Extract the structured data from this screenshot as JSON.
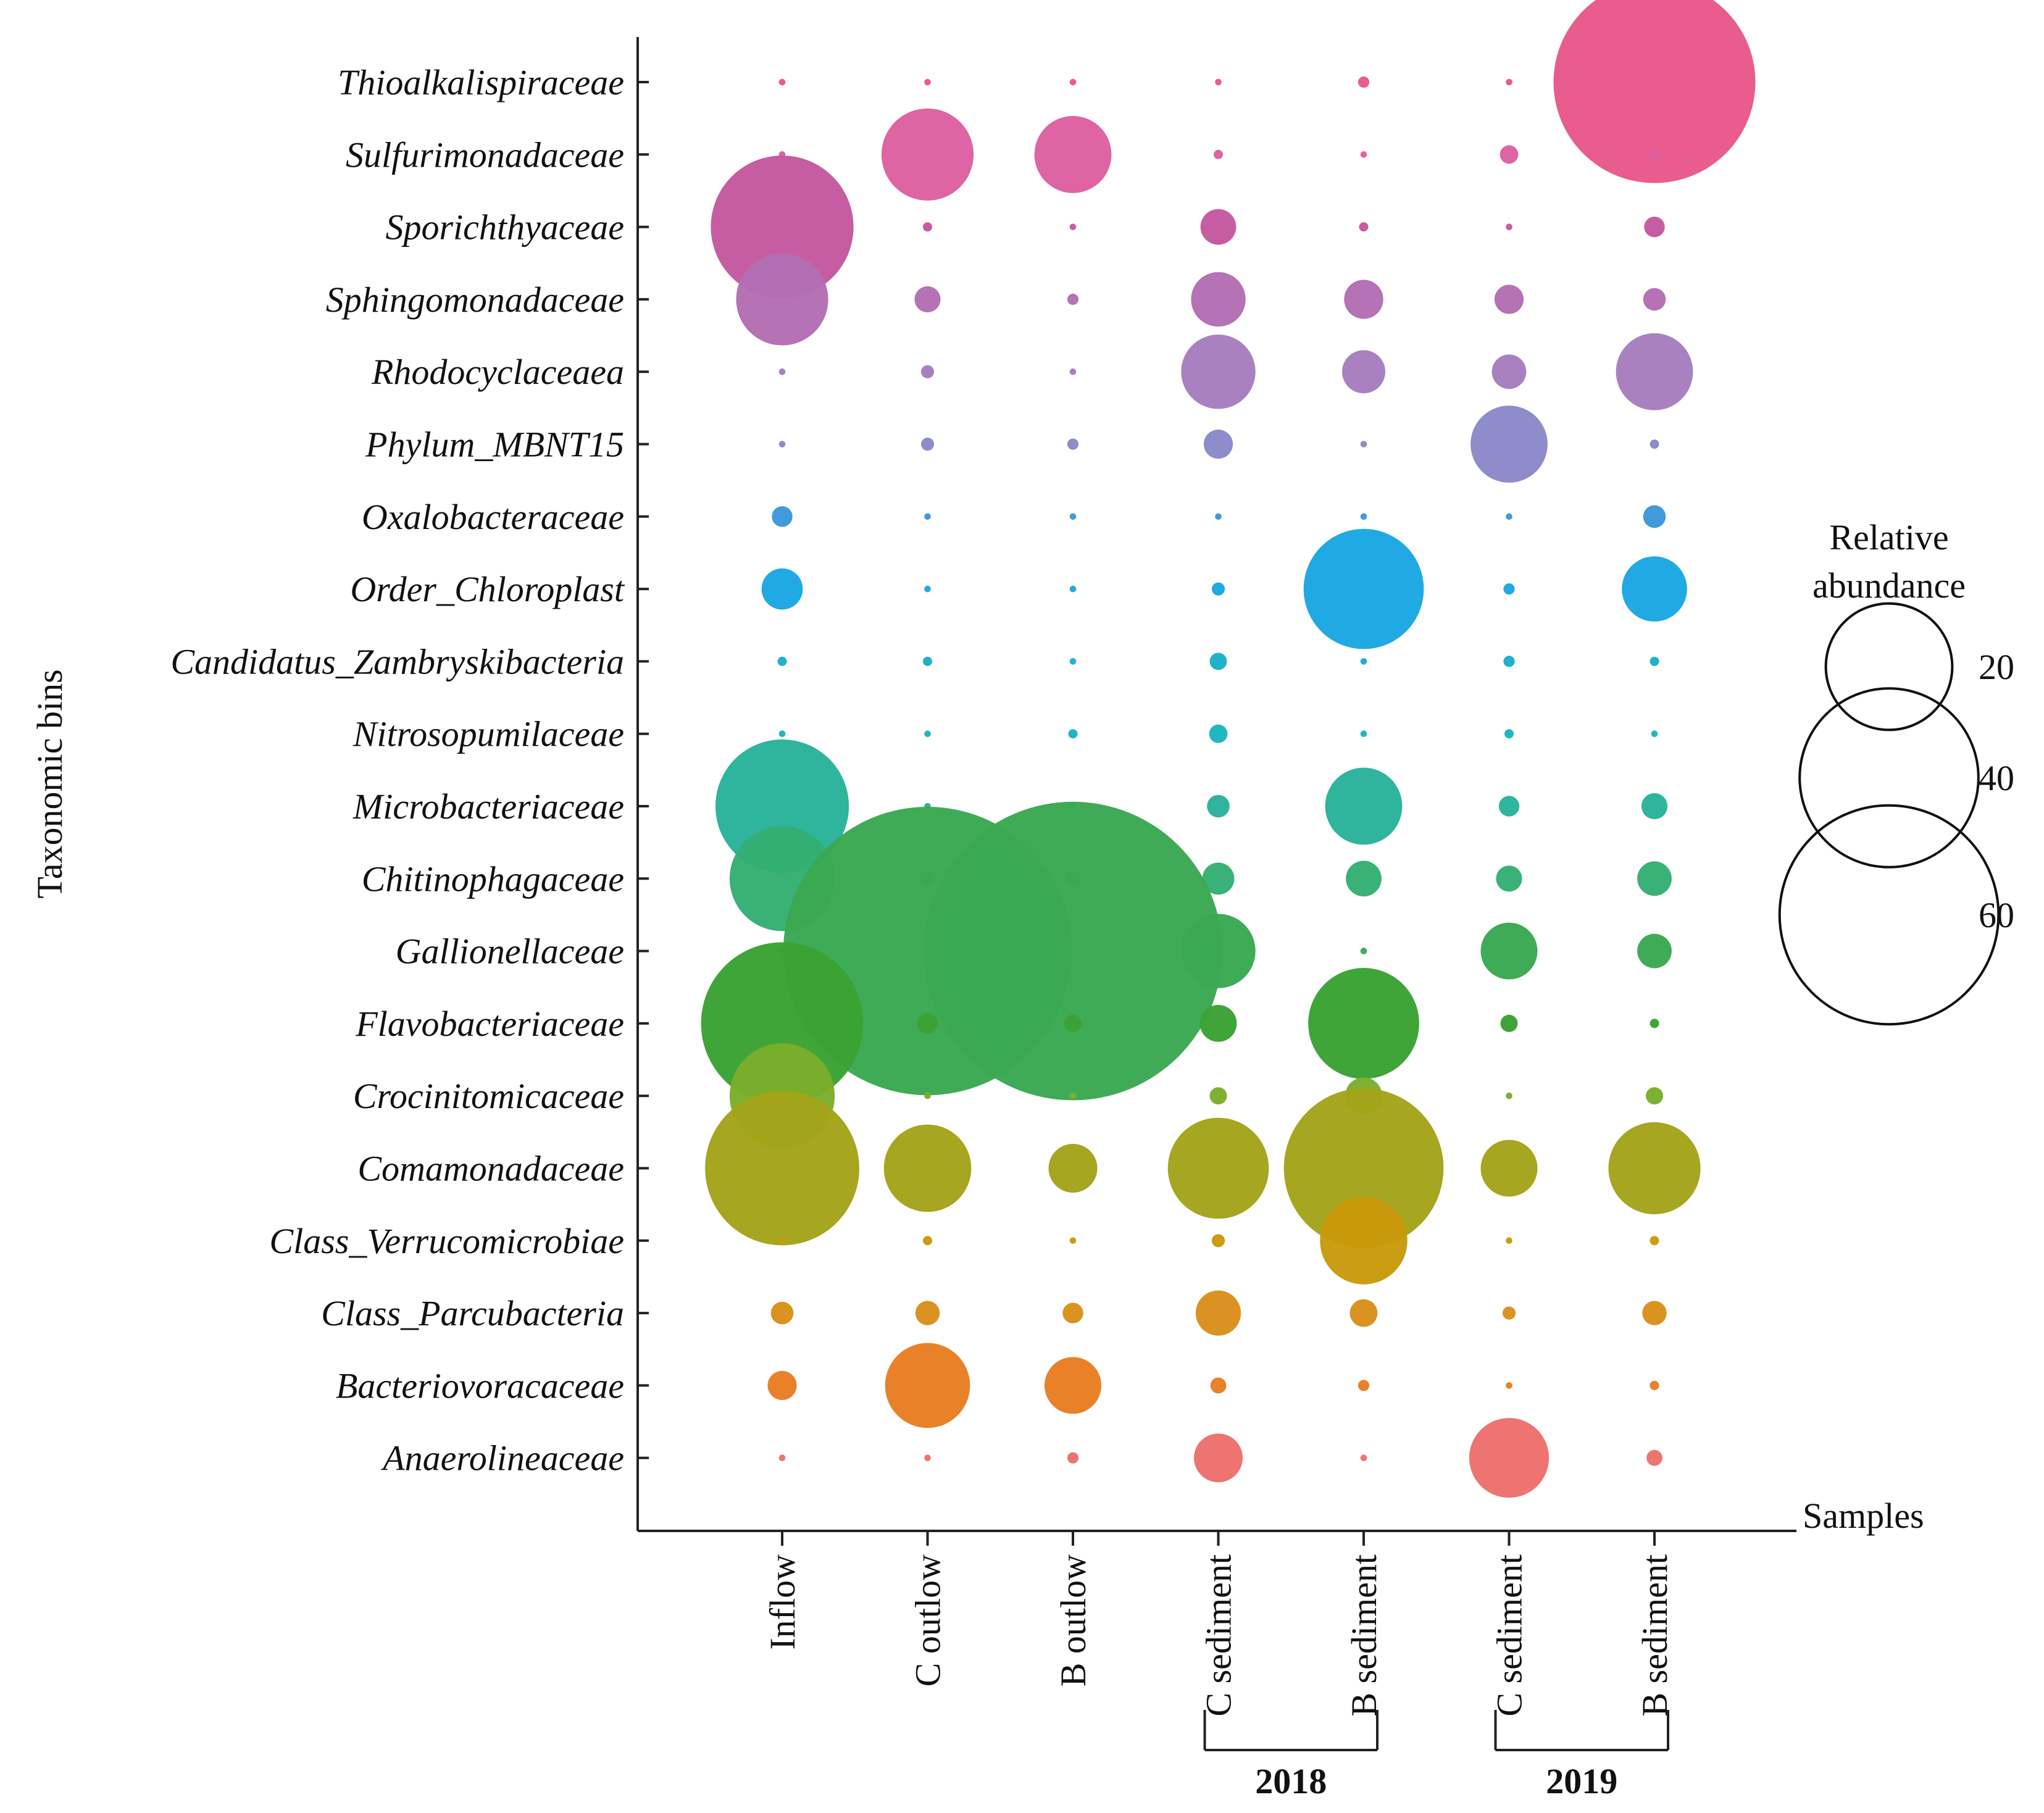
{
  "chart_data": {
    "type": "bubble",
    "xlabel": "Samples",
    "ylabel": "Taxonomic bins",
    "samples": [
      "Inflow",
      "C outlow",
      "B outlow",
      "C sediment",
      "B sediment",
      "C sediment",
      "B sediment"
    ],
    "groups": [
      {
        "label": "2018",
        "samples": [
          3,
          4
        ]
      },
      {
        "label": "2019",
        "samples": [
          5,
          6
        ]
      }
    ],
    "legend": {
      "title_line1": "Relative",
      "title_line2": "abundance",
      "sizes": [
        {
          "value": 20,
          "label": "20"
        },
        {
          "value": 40,
          "label": "40"
        },
        {
          "value": 60,
          "label": "60"
        }
      ]
    },
    "taxa": [
      {
        "name": "Thioalkalispiraceae",
        "color": "#e8578a",
        "values": [
          0.05,
          0.05,
          0.05,
          0.05,
          0.15,
          0.05,
          48
        ]
      },
      {
        "name": "Sulfurimonadaceae",
        "color": "#dd5fa0",
        "values": [
          0.05,
          10,
          7,
          0.1,
          0.05,
          0.4,
          0.1
        ]
      },
      {
        "name": "Sporichthyaceae",
        "color": "#c4589f",
        "values": [
          24,
          0.1,
          0.05,
          1.5,
          0.1,
          0.05,
          0.5
        ]
      },
      {
        "name": "Sphingomonadaceae",
        "color": "#b36db3",
        "values": [
          10,
          0.8,
          0.15,
          3.5,
          1.8,
          1.0,
          0.6
        ]
      },
      {
        "name": "Rhodocyclaceaea",
        "color": "#a67dbf",
        "values": [
          0.05,
          0.2,
          0.05,
          6.5,
          2.2,
          1.4,
          7
        ]
      },
      {
        "name": "Phylum_MBNT15",
        "color": "#8b88c9",
        "values": [
          0.05,
          0.2,
          0.15,
          1.0,
          0.05,
          7,
          0.1
        ]
      },
      {
        "name": "Oxalobacteraceae",
        "color": "#3b97d9",
        "values": [
          0.5,
          0.05,
          0.05,
          0.05,
          0.05,
          0.05,
          0.6
        ]
      },
      {
        "name": "Order_Chloroplast",
        "color": "#1aa6e3",
        "values": [
          2.0,
          0.05,
          0.05,
          0.2,
          17,
          0.15,
          5
        ]
      },
      {
        "name": "Candidatus_Zambryskibacteria",
        "color": "#19b0c9",
        "values": [
          0.1,
          0.1,
          0.05,
          0.35,
          0.05,
          0.15,
          0.1
        ]
      },
      {
        "name": "Nitrosopumilaceae",
        "color": "#19b5c0",
        "values": [
          0.05,
          0.05,
          0.1,
          0.4,
          0.05,
          0.1,
          0.05
        ]
      },
      {
        "name": "Microbacteriaceae",
        "color": "#28b29a",
        "values": [
          21,
          0.05,
          0.05,
          0.6,
          7,
          0.5,
          0.8
        ]
      },
      {
        "name": "Chitinophagaceae",
        "color": "#34ae72",
        "values": [
          13,
          0.3,
          0.3,
          1.2,
          1.5,
          0.8,
          1.4
        ]
      },
      {
        "name": "Gallionellaceae",
        "color": "#3aa851",
        "values": [
          0.05,
          98,
          105,
          6.5,
          0.05,
          3.8,
          1.4
        ]
      },
      {
        "name": "Flavobacteriaceae",
        "color": "#3aa233",
        "values": [
          31,
          0.5,
          0.35,
          1.6,
          14.5,
          0.35,
          0.1
        ]
      },
      {
        "name": "Crocinitomicaceae",
        "color": "#7aae2b",
        "values": [
          13,
          0.05,
          0.05,
          0.35,
          1.6,
          0.05,
          0.35
        ]
      },
      {
        "name": "Comamonadaceae",
        "color": "#a3a319",
        "values": [
          28,
          9,
          2.8,
          12,
          30,
          3.8,
          10
        ]
      },
      {
        "name": "Class_Verrucomicrobiae",
        "color": "#c99a0a",
        "values": [
          0.05,
          0.1,
          0.05,
          0.2,
          9,
          0.05,
          0.1
        ]
      },
      {
        "name": "Class_Parcubacteria",
        "color": "#d9901a",
        "values": [
          0.6,
          0.7,
          0.5,
          2.4,
          0.9,
          0.2,
          0.7
        ]
      },
      {
        "name": "Bacteriovoracaceae",
        "color": "#e87d22",
        "values": [
          1.0,
          8.5,
          3.8,
          0.3,
          0.15,
          0.05,
          0.1
        ]
      },
      {
        "name": "Anaerolineaceae",
        "color": "#ec6f6b",
        "values": [
          0.05,
          0.05,
          0.15,
          2.8,
          0.05,
          7.5,
          0.3
        ]
      }
    ]
  }
}
